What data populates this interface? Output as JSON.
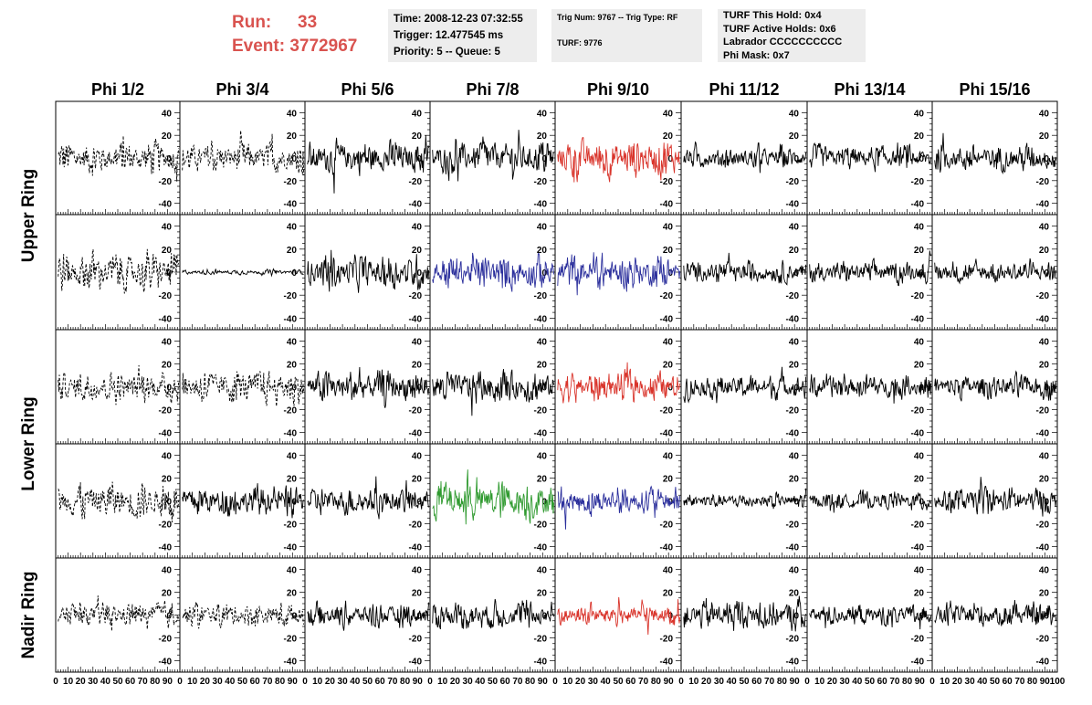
{
  "header": {
    "run_label": "Run:",
    "run_value": "33",
    "event_label": "Event:",
    "event_value": "3772967",
    "time": "Time: 2008-12-23 07:32:55",
    "trigger": "Trigger: 12.477545 ms",
    "priority": "Priority: 5 -- Queue: 5",
    "trig_num": "Trig Num: 9767 -- Trig Type: RF",
    "turf": "TURF: 9776",
    "turf_this_hold": "TURF This Hold: 0x4",
    "turf_active_holds": "TURF Active Holds: 0x6",
    "labrador": "Labrador CCCCCCCCCC",
    "phi_mask": "Phi Mask: 0x7"
  },
  "colors": {
    "header_red": "#d9534f",
    "trace_black": "#000000",
    "trace_red": "#d9342b",
    "trace_blue": "#2b2f9c",
    "trace_green": "#2f9a2f"
  },
  "chart_data": {
    "type": "line",
    "title": "",
    "columns": [
      "Phi 1/2",
      "Phi 3/4",
      "Phi 5/6",
      "Phi 7/8",
      "Phi 9/10",
      "Phi 11/12",
      "Phi 13/14",
      "Phi 15/16"
    ],
    "row_labels": [
      {
        "label": "Upper Ring",
        "rows": [
          0,
          1
        ]
      },
      {
        "label": "Lower Ring",
        "rows": [
          2,
          3
        ]
      },
      {
        "label": "Nadir Ring",
        "rows": [
          4
        ]
      }
    ],
    "xlim": [
      0,
      100
    ],
    "ylim": [
      -50,
      50
    ],
    "x_tick_labels": [
      "0",
      "10",
      "20",
      "30",
      "40",
      "50",
      "60",
      "70",
      "80",
      "90",
      "100"
    ],
    "y_tick_labels": [
      "-40",
      "-20",
      "0",
      "20",
      "40"
    ],
    "panels": [
      [
        {
          "style": "dashed",
          "color": "black",
          "amplitude": 22
        },
        {
          "style": "dashed",
          "color": "black",
          "amplitude": 20
        },
        {
          "style": "solid",
          "color": "black",
          "amplitude": 22
        },
        {
          "style": "solid",
          "color": "black",
          "amplitude": 22
        },
        {
          "style": "solid",
          "color": "red",
          "amplitude": 26
        },
        {
          "style": "solid",
          "color": "black",
          "amplitude": 14
        },
        {
          "style": "solid",
          "color": "black",
          "amplitude": 16
        },
        {
          "style": "solid",
          "color": "black",
          "amplitude": 18
        }
      ],
      [
        {
          "style": "dashed",
          "color": "black",
          "amplitude": 26
        },
        {
          "style": "solid",
          "color": "black",
          "amplitude": 3
        },
        {
          "style": "solid",
          "color": "black",
          "amplitude": 22
        },
        {
          "style": "solid",
          "color": "blue",
          "amplitude": 22
        },
        {
          "style": "solid",
          "color": "blue",
          "amplitude": 22
        },
        {
          "style": "solid",
          "color": "black",
          "amplitude": 14
        },
        {
          "style": "solid",
          "color": "black",
          "amplitude": 14
        },
        {
          "style": "solid",
          "color": "black",
          "amplitude": 14
        }
      ],
      [
        {
          "style": "dashed",
          "color": "black",
          "amplitude": 20
        },
        {
          "style": "dashed",
          "color": "black",
          "amplitude": 22
        },
        {
          "style": "solid",
          "color": "black",
          "amplitude": 22
        },
        {
          "style": "solid",
          "color": "black",
          "amplitude": 22
        },
        {
          "style": "solid",
          "color": "red",
          "amplitude": 20
        },
        {
          "style": "solid",
          "color": "black",
          "amplitude": 16
        },
        {
          "style": "solid",
          "color": "black",
          "amplitude": 16
        },
        {
          "style": "solid",
          "color": "black",
          "amplitude": 16
        }
      ],
      [
        {
          "style": "dashed",
          "color": "black",
          "amplitude": 24
        },
        {
          "style": "solid",
          "color": "black",
          "amplitude": 20
        },
        {
          "style": "solid",
          "color": "black",
          "amplitude": 18
        },
        {
          "style": "solid",
          "color": "green",
          "amplitude": 26
        },
        {
          "style": "solid",
          "color": "blue",
          "amplitude": 18
        },
        {
          "style": "solid",
          "color": "black",
          "amplitude": 10
        },
        {
          "style": "solid",
          "color": "black",
          "amplitude": 12
        },
        {
          "style": "solid",
          "color": "black",
          "amplitude": 18
        }
      ],
      [
        {
          "style": "dashed",
          "color": "black",
          "amplitude": 16
        },
        {
          "style": "dashed",
          "color": "black",
          "amplitude": 16
        },
        {
          "style": "solid",
          "color": "black",
          "amplitude": 16
        },
        {
          "style": "solid",
          "color": "black",
          "amplitude": 18
        },
        {
          "style": "solid",
          "color": "red",
          "amplitude": 14
        },
        {
          "style": "solid",
          "color": "black",
          "amplitude": 20
        },
        {
          "style": "solid",
          "color": "black",
          "amplitude": 14
        },
        {
          "style": "solid",
          "color": "black",
          "amplitude": 16
        }
      ]
    ]
  }
}
